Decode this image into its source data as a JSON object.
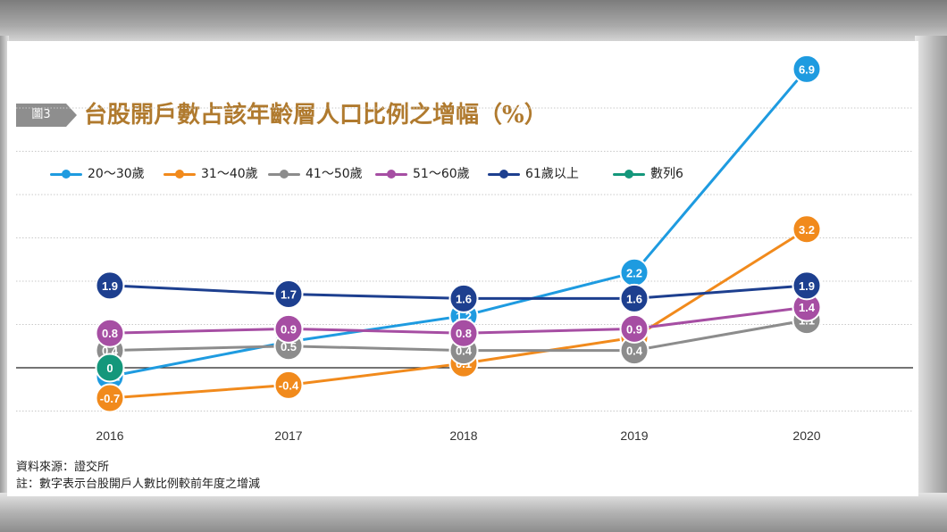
{
  "figure": {
    "tag": "圖3",
    "title": "台股開戶數占該年齡層人口比例之增幅（%）"
  },
  "notes": {
    "source": "資料來源：證交所",
    "footnote": "註：數字表示台股開戶人數比例較前年度之增減"
  },
  "chart_data": {
    "type": "line",
    "title": "台股開戶數占該年齡層人口比例之增幅（%）",
    "x": [
      "2016",
      "2017",
      "2018",
      "2019",
      "2020"
    ],
    "ylim": [
      -1.2,
      7.4
    ],
    "grid": true,
    "legend_position": "top-left",
    "series": [
      {
        "name": "20～30歲",
        "color": "#1e9be0",
        "values": [
          -0.2,
          0.6,
          1.2,
          2.2,
          6.9
        ]
      },
      {
        "name": "31～40歲",
        "color": "#f18a1c",
        "values": [
          -0.7,
          -0.4,
          0.1,
          0.7,
          3.2
        ]
      },
      {
        "name": "41～50歲",
        "color": "#8c8c8c",
        "values": [
          0.4,
          0.5,
          0.4,
          0.4,
          1.1
        ]
      },
      {
        "name": "51～60歲",
        "color": "#a64ea3",
        "values": [
          0.8,
          0.9,
          0.8,
          0.9,
          1.4
        ]
      },
      {
        "name": "61歲以上",
        "color": "#1d3f8f",
        "values": [
          1.9,
          1.7,
          1.6,
          1.6,
          1.9
        ]
      },
      {
        "name": "數列6",
        "color": "#14977b",
        "values": [
          0,
          null,
          null,
          null,
          null
        ]
      }
    ]
  }
}
